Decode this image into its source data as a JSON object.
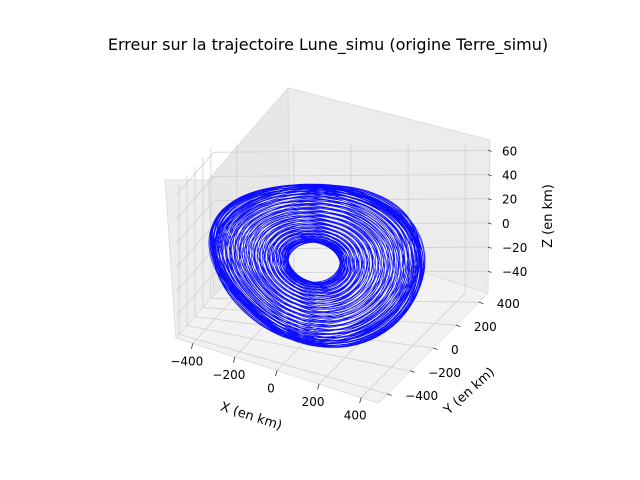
{
  "chart_data": {
    "type": "line3d",
    "title": "Erreur sur la trajectoire Lune_simu (origine Terre_simu)",
    "xlabel": "X (en km)",
    "ylabel": "Y (en km)",
    "zlabel": "Z (en km)",
    "xlim": [
      -480,
      480
    ],
    "ylim": [
      -480,
      480
    ],
    "zlim": [
      -58,
      66
    ],
    "x_ticks": [
      -400,
      -200,
      0,
      200,
      400
    ],
    "y_ticks": [
      -400,
      -200,
      0,
      200,
      400
    ],
    "z_ticks": [
      -40,
      -20,
      0,
      20,
      40,
      60
    ],
    "x_tick_labels": [
      "−400",
      "−200",
      "0",
      "200",
      "400"
    ],
    "y_tick_labels": [
      "−400",
      "−200",
      "0",
      "200",
      "400"
    ],
    "z_tick_labels": [
      "−40",
      "−20",
      "0",
      "20",
      "40",
      "60"
    ],
    "grid": true,
    "series": [
      {
        "color": "#0000ff",
        "line_width": 0.6,
        "revolutions": 140,
        "amplitude_x": 420,
        "amplitude_y": 360,
        "amplitude_z": 52,
        "amplitude_min_fraction": 0.25
      }
    ]
  }
}
